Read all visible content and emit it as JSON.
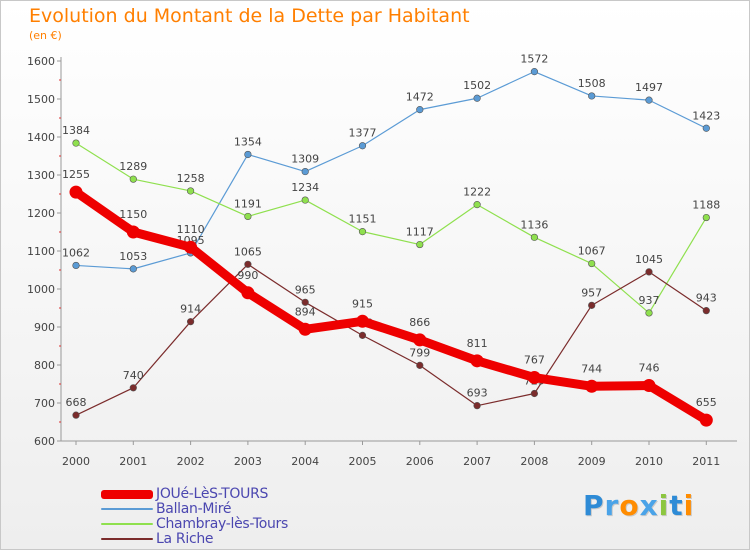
{
  "title": "Evolution du Montant de la Dette par Habitant",
  "unit": "(en €)",
  "logo": {
    "text": "Proxiti",
    "letter_colors": [
      "#2e8bd6",
      "#4aa3e8",
      "#ff8c00",
      "#4aa3e8",
      "#8cc63f",
      "#2e8bd6",
      "#ff8c00"
    ]
  },
  "chart_data": {
    "type": "line",
    "x": [
      "2000",
      "2001",
      "2002",
      "2003",
      "2004",
      "2005",
      "2006",
      "2007",
      "2008",
      "2009",
      "2010",
      "2011"
    ],
    "ylim": [
      600,
      1600
    ],
    "yticks": [
      600,
      700,
      800,
      900,
      1000,
      1100,
      1200,
      1300,
      1400,
      1500,
      1600
    ],
    "grid": false,
    "legend": "bottom-left",
    "series": [
      {
        "name": "JOUé-LèS-TOURS",
        "color": "#ee0000",
        "emphasis": true,
        "values": [
          1255,
          1150,
          1110,
          990,
          894,
          915,
          866,
          811,
          767,
          744,
          746,
          655
        ]
      },
      {
        "name": "Ballan-Miré",
        "color": "#5b9bd5",
        "values": [
          1062,
          1053,
          1095,
          1354,
          1309,
          1377,
          1472,
          1502,
          1572,
          1508,
          1497,
          1423
        ]
      },
      {
        "name": "Chambray-lès-Tours",
        "color": "#8fe04e",
        "values": [
          1384,
          1289,
          1258,
          1191,
          1234,
          1151,
          1117,
          1222,
          1136,
          1067,
          937,
          1188
        ]
      },
      {
        "name": "La Riche",
        "color": "#7b2c2c",
        "values": [
          668,
          740,
          914,
          1065,
          965,
          878,
          799,
          693,
          725,
          957,
          1045,
          943
        ]
      }
    ]
  }
}
